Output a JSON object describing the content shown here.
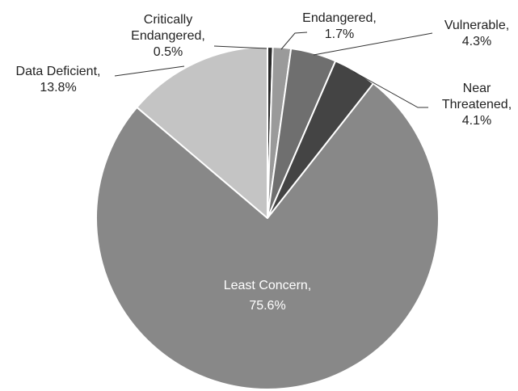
{
  "chart_data": {
    "type": "pie",
    "title": "",
    "slices": [
      {
        "name": "Critically Endangered",
        "value": 0.5,
        "label_lines": [
          "Critically",
          "Endangered,",
          "0.5%"
        ],
        "color": "#2a2a2a"
      },
      {
        "name": "Endangered",
        "value": 1.7,
        "label_lines": [
          "Endangered,",
          "1.7%"
        ],
        "color": "#9a9a9a"
      },
      {
        "name": "Vulnerable",
        "value": 4.3,
        "label_lines": [
          "Vulnerable,",
          "4.3%"
        ],
        "color": "#6f6f6f"
      },
      {
        "name": "Near Threatened",
        "value": 4.1,
        "label_lines": [
          "Near",
          "Threatened,",
          "4.1%"
        ],
        "color": "#444444"
      },
      {
        "name": "Least Concern",
        "value": 75.6,
        "label_lines": [
          "Least Concern,",
          "75.6%"
        ],
        "color": "#888888",
        "label_inside": true
      },
      {
        "name": "Data Deficient",
        "value": 13.8,
        "label_lines": [
          "Data Deficient,",
          "13.8%"
        ],
        "color": "#c4c4c4"
      }
    ],
    "start_angle": "top (12 o'clock)",
    "direction": "clockwise",
    "legend": "none",
    "slice_border_color": "#ffffff"
  }
}
